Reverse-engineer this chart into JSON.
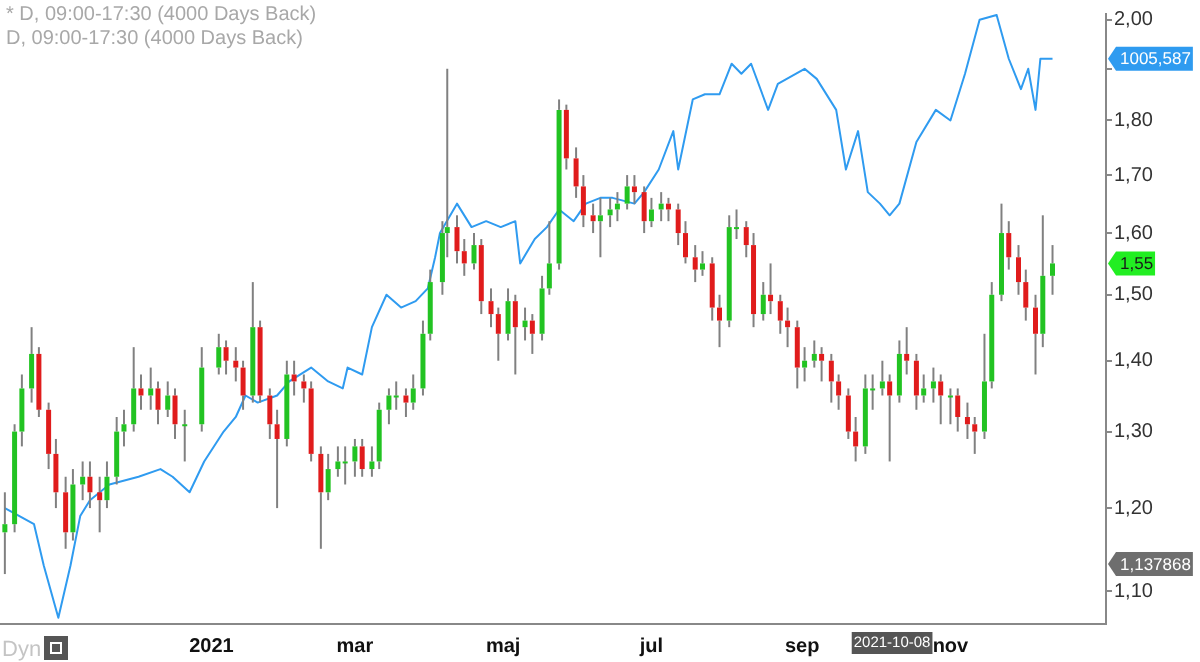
{
  "chart_data": {
    "type": "candlestick",
    "x": [
      "2020-10-08",
      "2020-10-12",
      "2020-10-15",
      "2020-10-19",
      "2020-10-22",
      "2020-10-26",
      "2020-10-29",
      "2020-11-02",
      "2020-11-05",
      "2020-11-09",
      "2020-11-12",
      "2020-11-16",
      "2020-11-19",
      "2020-11-23",
      "2020-11-26",
      "2020-11-30",
      "2020-12-03",
      "2020-12-07",
      "2020-12-10",
      "2020-12-14",
      "2020-12-17",
      "2020-12-21",
      "2020-12-28",
      "2021-01-04",
      "2021-01-07",
      "2021-01-11",
      "2021-01-14",
      "2021-01-18",
      "2021-01-21",
      "2021-01-25",
      "2021-01-28",
      "2021-02-01",
      "2021-02-04",
      "2021-02-08",
      "2021-02-11",
      "2021-02-15",
      "2021-02-18",
      "2021-02-22",
      "2021-02-25",
      "2021-03-01",
      "2021-03-04",
      "2021-03-08",
      "2021-03-11",
      "2021-03-15",
      "2021-03-18",
      "2021-03-22",
      "2021-03-25",
      "2021-03-29",
      "2021-04-01",
      "2021-04-06",
      "2021-04-08",
      "2021-04-12",
      "2021-04-15",
      "2021-04-19",
      "2021-04-22",
      "2021-04-26",
      "2021-04-29",
      "2021-05-03",
      "2021-05-06",
      "2021-05-10",
      "2021-05-13",
      "2021-05-17",
      "2021-05-20",
      "2021-05-24",
      "2021-05-27",
      "2021-05-31",
      "2021-06-03",
      "2021-06-07",
      "2021-06-10",
      "2021-06-14",
      "2021-06-17",
      "2021-06-21",
      "2021-06-24",
      "2021-06-28",
      "2021-07-01",
      "2021-07-05",
      "2021-07-08",
      "2021-07-12",
      "2021-07-15",
      "2021-07-19",
      "2021-07-22",
      "2021-07-26",
      "2021-07-29",
      "2021-08-02",
      "2021-08-05",
      "2021-08-09",
      "2021-08-12",
      "2021-08-16",
      "2021-08-19",
      "2021-08-23",
      "2021-08-26",
      "2021-08-30",
      "2021-09-02",
      "2021-09-06",
      "2021-09-09",
      "2021-09-13",
      "2021-09-16",
      "2021-09-20",
      "2021-09-23",
      "2021-09-27",
      "2021-09-30",
      "2021-10-04",
      "2021-10-07",
      "2021-10-11",
      "2021-10-14",
      "2021-10-18",
      "2021-10-21",
      "2021-10-25",
      "2021-10-28",
      "2021-11-01",
      "2021-11-04",
      "2021-11-08",
      "2021-11-11",
      "2021-11-15",
      "2021-11-18",
      "2021-11-22",
      "2021-11-25",
      "2021-11-29",
      "2021-12-02",
      "2021-12-06",
      "2021-12-09",
      "2021-12-13"
    ],
    "ohlc": [
      [
        1.17,
        1.22,
        1.12,
        1.18
      ],
      [
        1.18,
        1.31,
        1.17,
        1.3
      ],
      [
        1.3,
        1.38,
        1.28,
        1.36
      ],
      [
        1.36,
        1.45,
        1.34,
        1.41
      ],
      [
        1.41,
        1.42,
        1.32,
        1.33
      ],
      [
        1.33,
        1.34,
        1.25,
        1.27
      ],
      [
        1.27,
        1.29,
        1.2,
        1.22
      ],
      [
        1.22,
        1.24,
        1.15,
        1.17
      ],
      [
        1.17,
        1.25,
        1.16,
        1.23
      ],
      [
        1.23,
        1.26,
        1.21,
        1.24
      ],
      [
        1.24,
        1.26,
        1.2,
        1.22
      ],
      [
        1.22,
        1.24,
        1.17,
        1.21
      ],
      [
        1.21,
        1.26,
        1.2,
        1.24
      ],
      [
        1.24,
        1.32,
        1.23,
        1.3
      ],
      [
        1.3,
        1.33,
        1.28,
        1.31
      ],
      [
        1.31,
        1.42,
        1.3,
        1.36
      ],
      [
        1.36,
        1.38,
        1.33,
        1.35
      ],
      [
        1.35,
        1.39,
        1.33,
        1.36
      ],
      [
        1.36,
        1.37,
        1.31,
        1.33
      ],
      [
        1.33,
        1.37,
        1.32,
        1.35
      ],
      [
        1.35,
        1.36,
        1.29,
        1.31
      ],
      [
        1.31,
        1.33,
        1.26,
        1.31
      ],
      [
        1.31,
        1.42,
        1.3,
        1.39
      ],
      [
        1.39,
        1.44,
        1.38,
        1.42
      ],
      [
        1.42,
        1.43,
        1.38,
        1.4
      ],
      [
        1.4,
        1.42,
        1.37,
        1.39
      ],
      [
        1.39,
        1.4,
        1.33,
        1.35
      ],
      [
        1.35,
        1.52,
        1.34,
        1.45
      ],
      [
        1.45,
        1.46,
        1.34,
        1.35
      ],
      [
        1.35,
        1.36,
        1.29,
        1.31
      ],
      [
        1.31,
        1.33,
        1.2,
        1.29
      ],
      [
        1.29,
        1.4,
        1.28,
        1.38
      ],
      [
        1.38,
        1.4,
        1.35,
        1.37
      ],
      [
        1.37,
        1.38,
        1.34,
        1.36
      ],
      [
        1.36,
        1.37,
        1.26,
        1.27
      ],
      [
        1.27,
        1.28,
        1.15,
        1.22
      ],
      [
        1.22,
        1.27,
        1.21,
        1.25
      ],
      [
        1.25,
        1.28,
        1.24,
        1.26
      ],
      [
        1.26,
        1.28,
        1.23,
        1.26
      ],
      [
        1.26,
        1.29,
        1.24,
        1.28
      ],
      [
        1.28,
        1.29,
        1.24,
        1.25
      ],
      [
        1.25,
        1.28,
        1.24,
        1.26
      ],
      [
        1.26,
        1.34,
        1.25,
        1.33
      ],
      [
        1.33,
        1.36,
        1.31,
        1.35
      ],
      [
        1.35,
        1.37,
        1.33,
        1.35
      ],
      [
        1.35,
        1.36,
        1.32,
        1.34
      ],
      [
        1.34,
        1.38,
        1.33,
        1.36
      ],
      [
        1.36,
        1.46,
        1.35,
        1.44
      ],
      [
        1.44,
        1.54,
        1.43,
        1.52
      ],
      [
        1.52,
        1.62,
        1.5,
        1.6
      ],
      [
        1.6,
        1.9,
        1.56,
        1.61
      ],
      [
        1.61,
        1.63,
        1.55,
        1.57
      ],
      [
        1.57,
        1.59,
        1.53,
        1.55
      ],
      [
        1.55,
        1.6,
        1.54,
        1.58
      ],
      [
        1.58,
        1.59,
        1.47,
        1.49
      ],
      [
        1.49,
        1.51,
        1.45,
        1.47
      ],
      [
        1.47,
        1.48,
        1.4,
        1.44
      ],
      [
        1.44,
        1.51,
        1.43,
        1.49
      ],
      [
        1.49,
        1.5,
        1.38,
        1.45
      ],
      [
        1.45,
        1.48,
        1.43,
        1.46
      ],
      [
        1.46,
        1.47,
        1.41,
        1.44
      ],
      [
        1.44,
        1.53,
        1.43,
        1.51
      ],
      [
        1.51,
        1.62,
        1.5,
        1.55
      ],
      [
        1.55,
        1.84,
        1.54,
        1.82
      ],
      [
        1.82,
        1.83,
        1.71,
        1.73
      ],
      [
        1.73,
        1.75,
        1.66,
        1.68
      ],
      [
        1.68,
        1.7,
        1.61,
        1.63
      ],
      [
        1.63,
        1.65,
        1.6,
        1.62
      ],
      [
        1.62,
        1.66,
        1.56,
        1.63
      ],
      [
        1.63,
        1.66,
        1.61,
        1.64
      ],
      [
        1.64,
        1.67,
        1.62,
        1.65
      ],
      [
        1.65,
        1.7,
        1.64,
        1.68
      ],
      [
        1.68,
        1.7,
        1.65,
        1.67
      ],
      [
        1.67,
        1.68,
        1.6,
        1.62
      ],
      [
        1.62,
        1.66,
        1.61,
        1.64
      ],
      [
        1.64,
        1.67,
        1.62,
        1.65
      ],
      [
        1.65,
        1.66,
        1.62,
        1.64
      ],
      [
        1.64,
        1.65,
        1.58,
        1.6
      ],
      [
        1.6,
        1.62,
        1.55,
        1.56
      ],
      [
        1.56,
        1.58,
        1.52,
        1.54
      ],
      [
        1.54,
        1.57,
        1.53,
        1.55
      ],
      [
        1.55,
        1.56,
        1.46,
        1.48
      ],
      [
        1.48,
        1.5,
        1.42,
        1.46
      ],
      [
        1.46,
        1.63,
        1.45,
        1.61
      ],
      [
        1.61,
        1.64,
        1.59,
        1.61
      ],
      [
        1.61,
        1.62,
        1.56,
        1.58
      ],
      [
        1.58,
        1.6,
        1.45,
        1.47
      ],
      [
        1.47,
        1.52,
        1.46,
        1.5
      ],
      [
        1.5,
        1.55,
        1.47,
        1.49
      ],
      [
        1.49,
        1.5,
        1.44,
        1.46
      ],
      [
        1.46,
        1.48,
        1.42,
        1.45
      ],
      [
        1.45,
        1.46,
        1.36,
        1.39
      ],
      [
        1.39,
        1.42,
        1.37,
        1.4
      ],
      [
        1.4,
        1.43,
        1.39,
        1.41
      ],
      [
        1.41,
        1.42,
        1.37,
        1.4
      ],
      [
        1.4,
        1.41,
        1.34,
        1.37
      ],
      [
        1.37,
        1.38,
        1.33,
        1.35
      ],
      [
        1.35,
        1.36,
        1.29,
        1.3
      ],
      [
        1.3,
        1.32,
        1.26,
        1.28
      ],
      [
        1.28,
        1.38,
        1.27,
        1.36
      ],
      [
        1.36,
        1.38,
        1.33,
        1.36
      ],
      [
        1.36,
        1.4,
        1.35,
        1.37
      ],
      [
        1.37,
        1.38,
        1.26,
        1.35
      ],
      [
        1.35,
        1.43,
        1.34,
        1.41
      ],
      [
        1.41,
        1.45,
        1.38,
        1.4
      ],
      [
        1.4,
        1.41,
        1.33,
        1.35
      ],
      [
        1.35,
        1.38,
        1.34,
        1.36
      ],
      [
        1.36,
        1.39,
        1.34,
        1.37
      ],
      [
        1.37,
        1.38,
        1.31,
        1.35
      ],
      [
        1.35,
        1.36,
        1.31,
        1.35
      ],
      [
        1.35,
        1.36,
        1.3,
        1.32
      ],
      [
        1.32,
        1.34,
        1.29,
        1.31
      ],
      [
        1.31,
        1.32,
        1.27,
        1.3
      ],
      [
        1.3,
        1.44,
        1.29,
        1.37
      ],
      [
        1.37,
        1.52,
        1.36,
        1.5
      ],
      [
        1.5,
        1.65,
        1.49,
        1.6
      ],
      [
        1.6,
        1.62,
        1.54,
        1.56
      ],
      [
        1.56,
        1.58,
        1.5,
        1.52
      ],
      [
        1.52,
        1.54,
        1.46,
        1.48
      ],
      [
        1.48,
        1.5,
        1.38,
        1.44
      ],
      [
        1.44,
        1.63,
        1.42,
        1.53
      ],
      [
        1.53,
        1.58,
        1.5,
        1.55
      ]
    ],
    "series": [
      {
        "type": "line",
        "color": "#2f9bf0",
        "x": [
          "2020-10-08",
          "2020-10-20",
          "2020-10-24",
          "2020-10-30",
          "2020-11-04",
          "2020-11-08",
          "2020-11-12",
          "2020-11-20",
          "2020-12-02",
          "2020-12-11",
          "2020-12-16",
          "2020-12-23",
          "2020-12-29",
          "2021-01-06",
          "2021-01-11",
          "2021-01-15",
          "2021-01-20",
          "2021-01-28",
          "2021-02-02",
          "2021-02-11",
          "2021-02-18",
          "2021-02-24",
          "2021-02-26",
          "2021-03-04",
          "2021-03-08",
          "2021-03-14",
          "2021-03-20",
          "2021-03-26",
          "2021-03-31",
          "2021-04-03",
          "2021-04-05",
          "2021-04-12",
          "2021-04-18",
          "2021-04-24",
          "2021-04-30",
          "2021-05-06",
          "2021-05-08",
          "2021-05-14",
          "2021-05-19",
          "2021-05-24",
          "2021-05-30",
          "2021-06-04",
          "2021-06-10",
          "2021-06-15",
          "2021-06-24",
          "2021-06-28",
          "2021-07-04",
          "2021-07-10",
          "2021-07-12",
          "2021-07-18",
          "2021-07-23",
          "2021-07-29",
          "2021-08-03",
          "2021-08-07",
          "2021-08-11",
          "2021-08-18",
          "2021-08-22",
          "2021-09-02",
          "2021-09-07",
          "2021-09-15",
          "2021-09-19",
          "2021-09-24",
          "2021-09-28",
          "2021-10-03",
          "2021-10-07",
          "2021-10-11",
          "2021-10-18",
          "2021-10-26",
          "2021-11-01",
          "2021-11-07",
          "2021-11-13",
          "2021-11-20",
          "2021-11-25",
          "2021-11-30",
          "2021-12-03",
          "2021-12-06",
          "2021-12-08",
          "2021-12-13"
        ],
        "values": [
          1.2,
          1.18,
          1.13,
          1.07,
          1.13,
          1.19,
          1.21,
          1.23,
          1.24,
          1.25,
          1.24,
          1.22,
          1.26,
          1.3,
          1.32,
          1.35,
          1.34,
          1.35,
          1.37,
          1.39,
          1.37,
          1.36,
          1.39,
          1.38,
          1.45,
          1.5,
          1.48,
          1.49,
          1.51,
          1.56,
          1.6,
          1.65,
          1.61,
          1.62,
          1.61,
          1.62,
          1.55,
          1.59,
          1.61,
          1.64,
          1.62,
          1.65,
          1.66,
          1.66,
          1.65,
          1.67,
          1.71,
          1.78,
          1.71,
          1.84,
          1.85,
          1.85,
          1.91,
          1.89,
          1.91,
          1.82,
          1.87,
          1.9,
          1.88,
          1.82,
          1.71,
          1.78,
          1.67,
          1.65,
          1.63,
          1.65,
          1.76,
          1.82,
          1.8,
          1.89,
          2.0,
          2.01,
          1.92,
          1.86,
          1.9,
          1.82,
          1.92,
          1.92
        ]
      }
    ],
    "xlim": [
      "2020-10-06",
      "2022-01-04"
    ],
    "xticks": [
      {
        "value": "2021-01-01",
        "label": "2021"
      },
      {
        "value": "2021-03-01",
        "label": "mar"
      },
      {
        "value": "2021-05-01",
        "label": "maj"
      },
      {
        "value": "2021-07-01",
        "label": "jul"
      },
      {
        "value": "2021-09-01",
        "label": "sep"
      },
      {
        "value": "2021-10-08",
        "label": "2021-10-08"
      },
      {
        "value": "2021-11-01",
        "label": "nov"
      }
    ],
    "ylim": [
      1.063,
      2.012
    ],
    "yticks": [
      {
        "value": 1.1,
        "label": "1,10"
      },
      {
        "value": 1.2,
        "label": "1,20"
      },
      {
        "value": 1.3,
        "label": "1,30"
      },
      {
        "value": 1.4,
        "label": "1,40"
      },
      {
        "value": 1.5,
        "label": "1,50"
      },
      {
        "value": 1.6,
        "label": "1,60"
      },
      {
        "value": 1.7,
        "label": "1,70"
      },
      {
        "value": 1.8,
        "label": "1,80"
      },
      {
        "value": 1.9,
        "label": null
      },
      {
        "value": 2.0,
        "label": "2,00"
      }
    ],
    "log": true,
    "annotations": [
      "* D, 09:00-17:30 (4000 Days Back)",
      "D, 09:00-17:30 (4000 Days Back)",
      "Dyn",
      "1005,587",
      "1,55",
      "1,137868"
    ]
  }
}
